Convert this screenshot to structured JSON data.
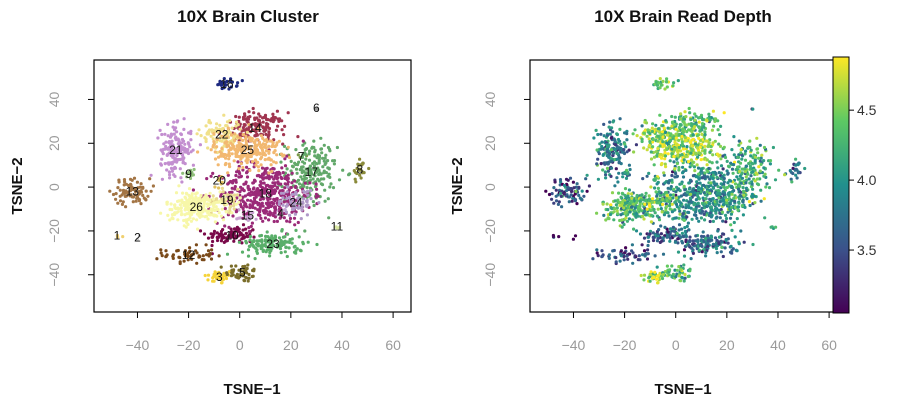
{
  "chart_data": [
    {
      "type": "scatter",
      "title": "10X Brain Cluster",
      "xlabel": "TSNE−1",
      "ylabel": "TSNE−2",
      "xlim": [
        -57,
        67
      ],
      "ylim": [
        -57,
        58
      ],
      "xticks": [
        -40,
        -20,
        0,
        20,
        40,
        60
      ],
      "yticks": [
        -40,
        -20,
        0,
        20,
        40
      ],
      "legend": "none",
      "clusters": [
        {
          "label": "1",
          "x": -48,
          "y": -22,
          "sx": 0.8,
          "sy": 0.8,
          "n": 4,
          "color": "#f0d070"
        },
        {
          "label": "2",
          "x": -40,
          "y": -23,
          "sx": 0.6,
          "sy": 0.6,
          "n": 2,
          "color": "#cccccc"
        },
        {
          "label": "3",
          "x": -8,
          "y": -41,
          "sx": 3.0,
          "sy": 1.6,
          "n": 35,
          "color": "#f5d33a"
        },
        {
          "label": "4",
          "x": 16,
          "y": -12,
          "sx": 1.2,
          "sy": 1.2,
          "n": 6,
          "color": "#c7a8d5"
        },
        {
          "label": "5",
          "x": 1,
          "y": -39,
          "sx": 3.2,
          "sy": 2.2,
          "n": 45,
          "color": "#7a6d2a"
        },
        {
          "label": "6",
          "x": 30,
          "y": 36,
          "sx": 0.6,
          "sy": 0.6,
          "n": 2,
          "color": "#999999"
        },
        {
          "label": "7",
          "x": 24,
          "y": 14,
          "sx": 1.2,
          "sy": 1.2,
          "n": 5,
          "color": "#7a9a4a"
        },
        {
          "label": "8",
          "x": 47,
          "y": 8,
          "sx": 1.5,
          "sy": 3.2,
          "n": 25,
          "color": "#8a8a3a"
        },
        {
          "label": "9",
          "x": -20,
          "y": 6,
          "sx": 1.5,
          "sy": 1.5,
          "n": 12,
          "color": "#8fbf7a"
        },
        {
          "label": "10",
          "x": -3,
          "y": -22,
          "sx": 5.0,
          "sy": 2.0,
          "n": 90,
          "color": "#7a0a4a"
        },
        {
          "label": "11",
          "x": 38,
          "y": -18,
          "sx": 1.0,
          "sy": 1.0,
          "n": 4,
          "color": "#d8e6a0"
        },
        {
          "label": "12",
          "x": -20,
          "y": -31,
          "sx": 5.0,
          "sy": 2.0,
          "n": 55,
          "color": "#7a4a1a"
        },
        {
          "label": "13",
          "x": -42,
          "y": -2,
          "sx": 3.5,
          "sy": 3.0,
          "n": 80,
          "color": "#a37545"
        },
        {
          "label": "14",
          "x": 6,
          "y": 27,
          "sx": 6.0,
          "sy": 3.5,
          "n": 150,
          "color": "#a03550"
        },
        {
          "label": "15",
          "x": 3,
          "y": -13,
          "sx": 2.0,
          "sy": 1.5,
          "n": 20,
          "color": "#c8a0d0"
        },
        {
          "label": "16",
          "x": -5,
          "y": 47,
          "sx": 2.0,
          "sy": 1.2,
          "n": 25,
          "color": "#1e2a80"
        },
        {
          "label": "17",
          "x": 28,
          "y": 7,
          "sx": 5.0,
          "sy": 7.0,
          "n": 180,
          "color": "#62a86a"
        },
        {
          "label": "18",
          "x": 10,
          "y": -3,
          "sx": 9.0,
          "sy": 7.0,
          "n": 420,
          "color": "#9a2a78"
        },
        {
          "label": "19",
          "x": -5,
          "y": -6,
          "sx": 3.0,
          "sy": 2.5,
          "n": 45,
          "color": "#e8d890"
        },
        {
          "label": "20",
          "x": -8,
          "y": 3,
          "sx": 2.0,
          "sy": 1.5,
          "n": 10,
          "color": "#e0c060"
        },
        {
          "label": "21",
          "x": -25,
          "y": 17,
          "sx": 3.0,
          "sy": 5.5,
          "n": 160,
          "color": "#c38fd0"
        },
        {
          "label": "22",
          "x": -7,
          "y": 24,
          "sx": 4.0,
          "sy": 3.5,
          "n": 100,
          "color": "#f0e08a"
        },
        {
          "label": "23",
          "x": 13,
          "y": -26,
          "sx": 6.0,
          "sy": 2.5,
          "n": 140,
          "color": "#5aaf6a"
        },
        {
          "label": "24",
          "x": 22,
          "y": -7,
          "sx": 3.5,
          "sy": 3.0,
          "n": 60,
          "color": "#b098c8"
        },
        {
          "label": "25",
          "x": 3,
          "y": 17,
          "sx": 6.5,
          "sy": 4.0,
          "n": 230,
          "color": "#f2b870"
        },
        {
          "label": "26",
          "x": -17,
          "y": -9,
          "sx": 6.0,
          "sy": 3.5,
          "n": 230,
          "color": "#f7f7a8"
        }
      ]
    },
    {
      "type": "scatter",
      "title": "10X Brain Read Depth",
      "xlabel": "TSNE−1",
      "ylabel": "TSNE−2",
      "xlim": [
        -57,
        67
      ],
      "ylim": [
        -57,
        58
      ],
      "xticks": [
        -40,
        -20,
        0,
        20,
        40,
        60
      ],
      "yticks": [
        -40,
        -20,
        0,
        20,
        40
      ],
      "color_scale": "viridis",
      "colorbar": {
        "min": 3.05,
        "max": 4.88,
        "ticks": [
          "3.5",
          "4.0",
          "4.5"
        ],
        "tick_values": [
          3.5,
          4.0,
          4.5
        ]
      },
      "depth_by_cluster": {
        "1": 3.4,
        "2": 3.4,
        "3": 4.6,
        "4": 3.9,
        "5": 4.3,
        "6": 3.6,
        "7": 4.0,
        "8": 3.8,
        "9": 4.0,
        "10": 3.6,
        "11": 4.2,
        "12": 3.5,
        "13": 3.5,
        "14": 4.3,
        "15": 4.0,
        "16": 4.4,
        "17": 4.2,
        "18": 3.9,
        "19": 4.3,
        "20": 4.2,
        "21": 3.8,
        "22": 4.5,
        "23": 3.7,
        "24": 4.1,
        "25": 4.6,
        "26": 4.3
      }
    }
  ]
}
